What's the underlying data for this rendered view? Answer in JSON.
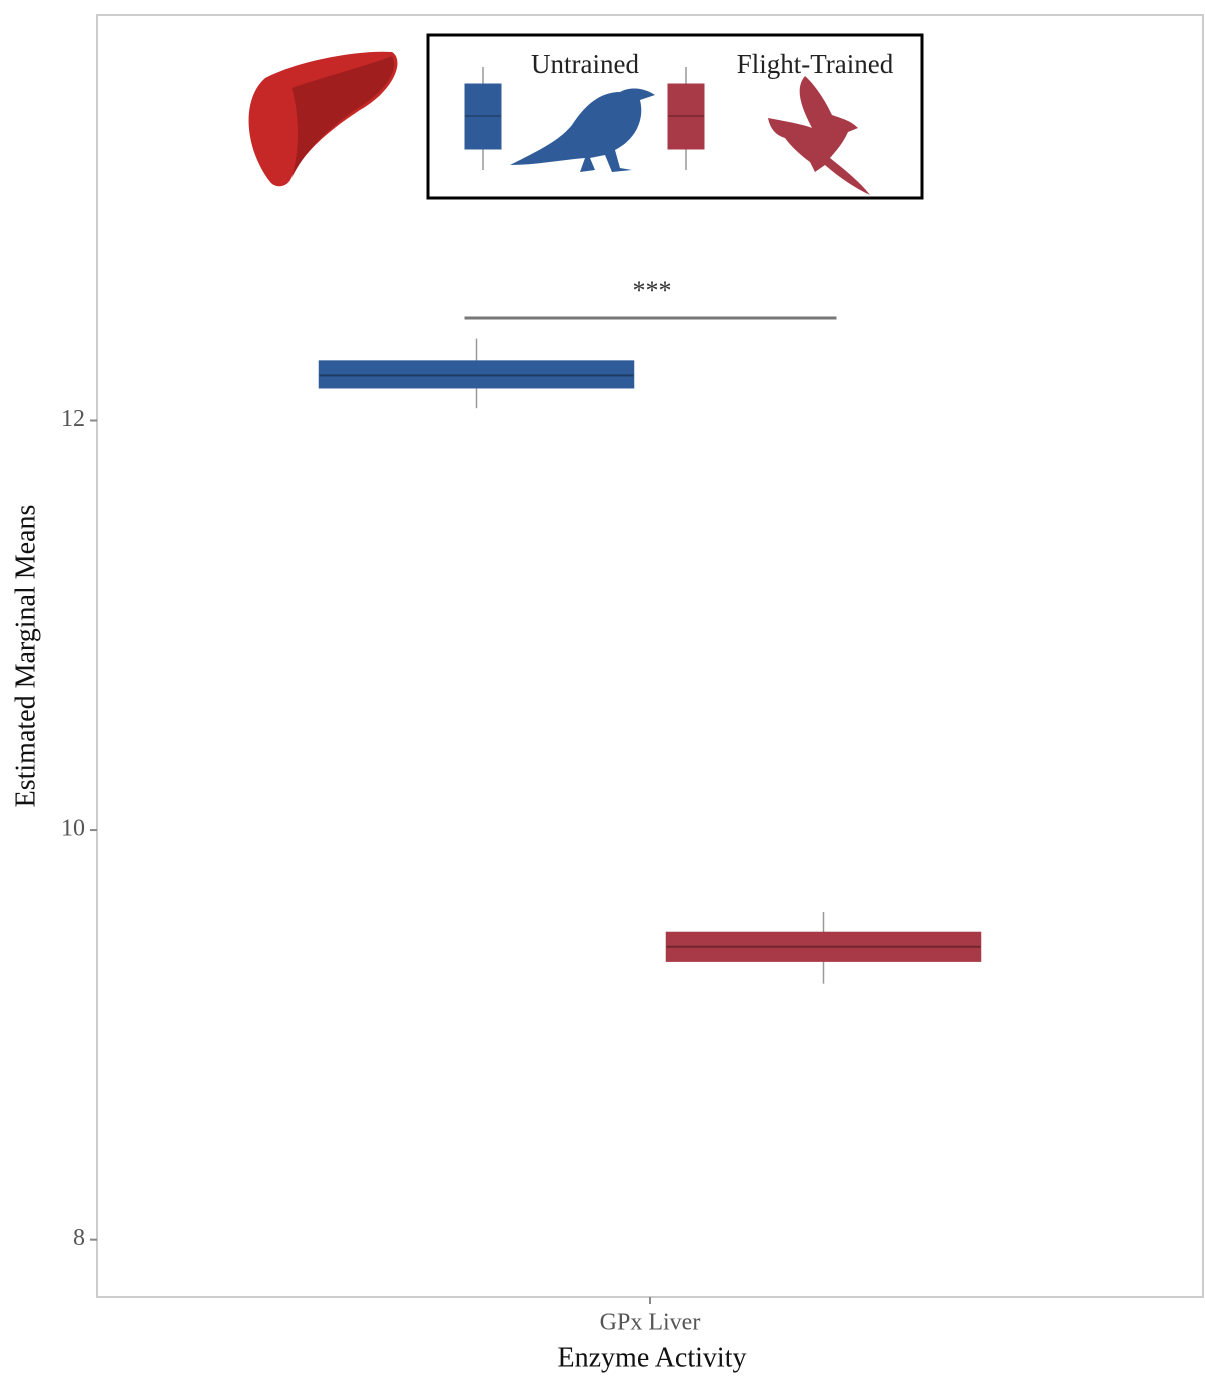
{
  "chart_data": {
    "type": "box",
    "x_label": "Enzyme Activity",
    "y_label": "Estimated Marginal Means",
    "categories": [
      "GPx Liver"
    ],
    "series": [
      {
        "name": "Untrained",
        "color": "#2f5c99",
        "whisker_low": [
          12.06
        ],
        "q1": [
          12.16
        ],
        "median": [
          12.22
        ],
        "q3": [
          12.29
        ],
        "whisker_high": [
          12.4
        ]
      },
      {
        "name": "Flight-Trained",
        "color": "#a83a48",
        "whisker_low": [
          9.25
        ],
        "q1": [
          9.36
        ],
        "median": [
          9.43
        ],
        "q3": [
          9.5
        ],
        "whisker_high": [
          9.6
        ]
      }
    ],
    "annotation": "***",
    "ylim": [
      7.72,
      13.98
    ],
    "yticks": [
      8,
      10,
      12
    ],
    "grid": false,
    "legend_position": "top"
  }
}
